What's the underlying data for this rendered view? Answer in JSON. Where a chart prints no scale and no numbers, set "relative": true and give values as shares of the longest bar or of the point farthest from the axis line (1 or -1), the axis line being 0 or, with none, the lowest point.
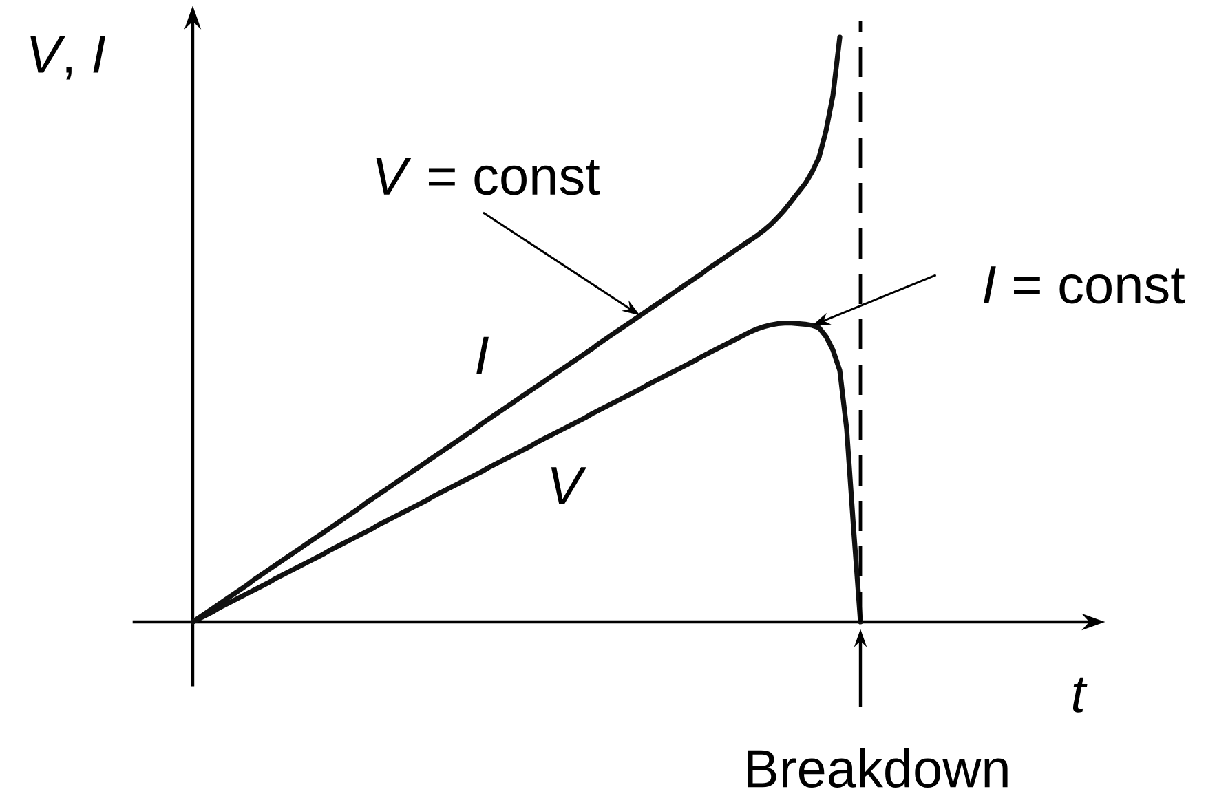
{
  "chart_data": {
    "type": "line",
    "relative": true,
    "xlabel": "t",
    "ylabel": "*V*, *I*",
    "categories": [
      null,
      null,
      null,
      null,
      null,
      null,
      null,
      null,
      null,
      null,
      null,
      null,
      null,
      null,
      null,
      null,
      null,
      null,
      null,
      null,
      null,
      null,
      null,
      null,
      null,
      null,
      null,
      null,
      null,
      null,
      null,
      null,
      null,
      null,
      null,
      null,
      null,
      null,
      null,
      null,
      null,
      null,
      null,
      null,
      null,
      null,
      null,
      null,
      null,
      null,
      null,
      null,
      null,
      null,
      null,
      null,
      null,
      null,
      null,
      null,
      null,
      null,
      null,
      null,
      null,
      null,
      null,
      null,
      null,
      null,
      null,
      null,
      null,
      null,
      null,
      null,
      null,
      null,
      null,
      null,
      null,
      null,
      null,
      null,
      null,
      null,
      null,
      null,
      null,
      null,
      null,
      null,
      null,
      null,
      null,
      null,
      null,
      null
    ],
    "series": [
      {
        "name": "I",
        "color": "#111111",
        "values": [
          0,
          0.008,
          0.016,
          0.024,
          0.032,
          0.04,
          0.048,
          0.056,
          0.064,
          0.073,
          0.081,
          0.089,
          0.097,
          0.105,
          0.113,
          0.121,
          0.129,
          0.137,
          0.145,
          0.153,
          0.161,
          0.169,
          0.177,
          0.185,
          0.193,
          0.202,
          0.21,
          0.218,
          0.226,
          0.234,
          0.242,
          0.25,
          0.258,
          0.266,
          0.274,
          0.282,
          0.29,
          0.298,
          0.306,
          0.314,
          0.322,
          0.33,
          0.339,
          0.347,
          0.355,
          0.363,
          0.371,
          0.379,
          0.387,
          0.395,
          0.403,
          0.411,
          0.419,
          0.427,
          0.435,
          0.443,
          0.451,
          0.459,
          0.467,
          0.476,
          0.484,
          0.492,
          0.5,
          0.508,
          0.516,
          0.524,
          0.532,
          0.54,
          0.548,
          0.556,
          0.564,
          0.572,
          0.58,
          0.588,
          0.596,
          0.605,
          0.613,
          0.621,
          0.629,
          0.637,
          0.645,
          0.653,
          0.661,
          0.67,
          0.68,
          0.692,
          0.705,
          0.72,
          0.735,
          0.75,
          0.77,
          0.795,
          0.84,
          0.9,
          1.0,
          null,
          null,
          null
        ]
      },
      {
        "name": "V",
        "color": "#111111",
        "values": [
          0,
          0.006,
          0.012,
          0.018,
          0.025,
          0.031,
          0.037,
          0.043,
          0.049,
          0.055,
          0.061,
          0.067,
          0.074,
          0.08,
          0.086,
          0.092,
          0.098,
          0.104,
          0.11,
          0.116,
          0.123,
          0.129,
          0.135,
          0.141,
          0.147,
          0.153,
          0.159,
          0.166,
          0.172,
          0.178,
          0.184,
          0.19,
          0.196,
          0.202,
          0.208,
          0.215,
          0.221,
          0.227,
          0.233,
          0.239,
          0.245,
          0.251,
          0.257,
          0.264,
          0.27,
          0.276,
          0.282,
          0.288,
          0.294,
          0.3,
          0.307,
          0.313,
          0.319,
          0.325,
          0.331,
          0.337,
          0.343,
          0.349,
          0.356,
          0.362,
          0.368,
          0.374,
          0.38,
          0.386,
          0.392,
          0.398,
          0.405,
          0.411,
          0.417,
          0.423,
          0.429,
          0.435,
          0.441,
          0.447,
          0.454,
          0.46,
          0.466,
          0.472,
          0.478,
          0.484,
          0.49,
          0.496,
          0.501,
          0.505,
          0.508,
          0.51,
          0.511,
          0.511,
          0.51,
          0.509,
          0.507,
          0.503,
          0.488,
          0.465,
          0.43,
          0.33,
          0.16,
          0
        ]
      }
    ],
    "annotations": [
      "*V* = const",
      "*I* = const",
      "Breakdown"
    ]
  }
}
